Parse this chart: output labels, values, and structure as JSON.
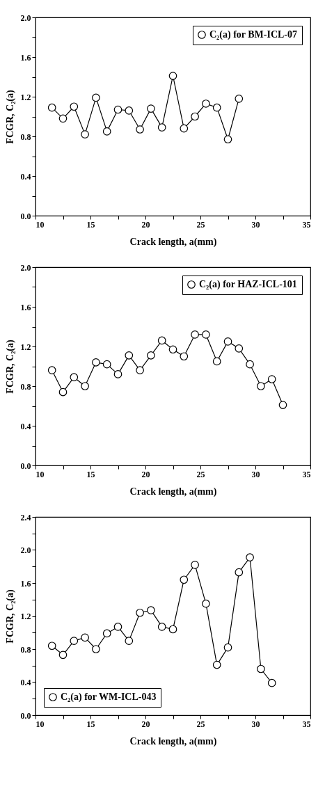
{
  "chart_data": [
    {
      "type": "line",
      "xlabel": "Crack length, a(mm)",
      "ylabel": "FCGR, C₂(a)",
      "legend": "top right",
      "marker": "circle",
      "line_style": "solid",
      "x": [
        11.5,
        12.5,
        13.5,
        14.5,
        15.5,
        16.5,
        17.5,
        18.5,
        19.5,
        20.5,
        21.5,
        22.5,
        23.5,
        24.5,
        25.5,
        26.5,
        27.5,
        28.5
      ],
      "series": [
        {
          "name": "C₂(a) for BM-ICL-07",
          "color": "#000000",
          "values": [
            1.09,
            0.98,
            1.1,
            0.82,
            1.19,
            0.85,
            1.07,
            1.06,
            0.87,
            1.08,
            0.89,
            1.41,
            0.88,
            1.0,
            1.13,
            1.09,
            0.77,
            1.18
          ]
        }
      ],
      "xlim": [
        10,
        35
      ],
      "xticks": [
        10,
        {
          "value": 12.5,
          "label": null
        },
        15,
        {
          "value": 17.5,
          "label": null
        },
        20,
        {
          "value": 22.5,
          "label": null
        },
        25,
        {
          "value": 27.5,
          "label": null
        },
        30,
        {
          "value": 32.5,
          "label": null
        },
        35
      ],
      "ylim": [
        0,
        2
      ],
      "yticks": [
        {
          "value": 0,
          "label": "0.0"
        },
        {
          "value": 0.2,
          "label": null
        },
        {
          "value": 0.4,
          "label": "0.4"
        },
        {
          "value": 0.6,
          "label": null
        },
        {
          "value": 0.8,
          "label": "0.8"
        },
        {
          "value": 1.0,
          "label": null
        },
        {
          "value": 1.2,
          "label": "1.2"
        },
        {
          "value": 1.4,
          "label": null
        },
        {
          "value": 1.6,
          "label": "1.6"
        },
        {
          "value": 1.8,
          "label": null
        },
        {
          "value": 2,
          "label": "2.0"
        }
      ]
    },
    {
      "type": "line",
      "xlabel": "Crack length, a(mm)",
      "ylabel": "FCGR, C₂(a)",
      "legend": "top right",
      "marker": "circle",
      "line_style": "solid",
      "x": [
        11.5,
        12.5,
        13.5,
        14.5,
        15.5,
        16.5,
        17.5,
        18.5,
        19.5,
        20.5,
        21.5,
        22.5,
        23.5,
        24.5,
        25.5,
        26.5,
        27.5,
        28.5,
        29.5,
        30.5,
        31.5,
        32.5
      ],
      "series": [
        {
          "name": "C₂(a) for HAZ-ICL-101",
          "color": "#000000",
          "values": [
            0.96,
            0.74,
            0.89,
            0.8,
            1.04,
            1.02,
            0.92,
            1.11,
            0.96,
            1.11,
            1.26,
            1.17,
            1.1,
            1.32,
            1.32,
            1.05,
            1.25,
            1.18,
            1.02,
            0.8,
            0.87,
            0.61
          ]
        }
      ],
      "xlim": [
        10,
        35
      ],
      "xticks": [
        10,
        {
          "value": 12.5,
          "label": null
        },
        15,
        {
          "value": 17.5,
          "label": null
        },
        20,
        {
          "value": 22.5,
          "label": null
        },
        25,
        {
          "value": 27.5,
          "label": null
        },
        30,
        {
          "value": 32.5,
          "label": null
        },
        35
      ],
      "ylim": [
        0,
        2
      ],
      "yticks": [
        {
          "value": 0,
          "label": "0.0"
        },
        {
          "value": 0.2,
          "label": null
        },
        {
          "value": 0.4,
          "label": "0.4"
        },
        {
          "value": 0.6,
          "label": null
        },
        {
          "value": 0.8,
          "label": "0.8"
        },
        {
          "value": 1.0,
          "label": null
        },
        {
          "value": 1.2,
          "label": "1.2"
        },
        {
          "value": 1.4,
          "label": null
        },
        {
          "value": 1.6,
          "label": "1.6"
        },
        {
          "value": 1.8,
          "label": null
        },
        {
          "value": 2,
          "label": "2.0"
        }
      ]
    },
    {
      "type": "line",
      "xlabel": "Crack length, a(mm)",
      "ylabel": "FCGR, C₂(a)",
      "legend": "bottom left",
      "marker": "circle",
      "line_style": "solid",
      "x": [
        11.5,
        12.5,
        13.5,
        14.5,
        15.5,
        16.5,
        17.5,
        18.5,
        19.5,
        20.5,
        21.5,
        22.5,
        23.5,
        24.5,
        25.5,
        26.5,
        27.5,
        28.5,
        29.5,
        30.5,
        31.5
      ],
      "series": [
        {
          "name": "C₂(a) for WM-ICL-043",
          "color": "#000000",
          "values": [
            0.84,
            0.73,
            0.9,
            0.94,
            0.8,
            0.99,
            1.07,
            0.9,
            1.24,
            1.27,
            1.07,
            1.04,
            1.64,
            1.82,
            1.35,
            0.61,
            0.82,
            1.73,
            1.91,
            0.56,
            0.39
          ]
        }
      ],
      "xlim": [
        10,
        35
      ],
      "xticks": [
        10,
        {
          "value": 12.5,
          "label": null
        },
        15,
        {
          "value": 17.5,
          "label": null
        },
        20,
        {
          "value": 22.5,
          "label": null
        },
        25,
        {
          "value": 27.5,
          "label": null
        },
        30,
        {
          "value": 32.5,
          "label": null
        },
        35
      ],
      "ylim": [
        0,
        2.4
      ],
      "yticks": [
        {
          "value": 0,
          "label": "0.0"
        },
        {
          "value": 0.2,
          "label": null
        },
        {
          "value": 0.4,
          "label": "0.4"
        },
        {
          "value": 0.6,
          "label": null
        },
        {
          "value": 0.8,
          "label": "0.8"
        },
        {
          "value": 1.0,
          "label": null
        },
        {
          "value": 1.2,
          "label": "1.2"
        },
        {
          "value": 1.4,
          "label": null
        },
        {
          "value": 1.6,
          "label": "1.6"
        },
        {
          "value": 1.8,
          "label": null
        },
        {
          "value": 2,
          "label": "2.0"
        },
        {
          "value": 2.2,
          "label": null
        },
        {
          "value": 2.4,
          "label": "2.4"
        }
      ]
    }
  ]
}
